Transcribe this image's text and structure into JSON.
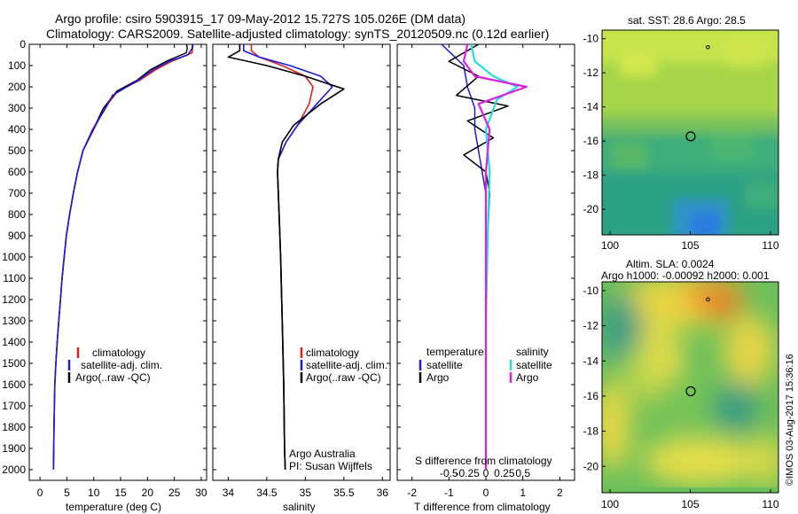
{
  "header": {
    "line1": "Argo profile: csiro 5903915_17 09-May-2012 15.727S 105.026E (DM data)",
    "line2": "Climatology: CARS2009. Satellite-adjusted climatology: synTS_20120509.nc (0.12d earlier)"
  },
  "credits": {
    "argo": "Argo Australia",
    "pi": "PI: Susan Wijffels",
    "imos": "©IMOS 03-Aug-2017 15:36:16"
  },
  "colors": {
    "climatology": "#e02020",
    "satellite": "#1c1cdc",
    "argo": "#000000",
    "sal_satellite": "#22dede",
    "sal_argo": "#e020e0"
  },
  "chart_data": [
    {
      "type": "line",
      "id": "temperature",
      "xlabel": "temperature (deg C)",
      "xlim": [
        -2,
        31
      ],
      "ylim": [
        0,
        2050
      ],
      "yticks": [
        0,
        100,
        200,
        300,
        400,
        500,
        600,
        700,
        800,
        900,
        1000,
        1100,
        1200,
        1300,
        1400,
        1500,
        1600,
        1700,
        1800,
        1900,
        2000
      ],
      "xticks": [
        0,
        5,
        10,
        15,
        20,
        25,
        30
      ],
      "legend": [
        "climatology",
        "satellite-adj. clim.",
        "Argo(..raw -QC)"
      ],
      "series": [
        {
          "name": "climatology",
          "x": [
            28.5,
            28.4,
            28.3,
            24.5,
            21.5,
            18.5,
            14.5,
            12.0,
            10.0,
            8.0,
            7.0,
            6.2,
            5.5,
            4.9,
            4.5,
            4.1,
            3.8,
            3.5,
            3.2,
            2.95,
            2.75,
            2.6,
            2.5
          ],
          "y": [
            0,
            20,
            40,
            80,
            120,
            170,
            220,
            300,
            400,
            500,
            600,
            700,
            800,
            900,
            1000,
            1100,
            1200,
            1300,
            1400,
            1500,
            1600,
            1800,
            2000
          ]
        },
        {
          "name": "satellite-adj. clim.",
          "x": [
            27.3,
            27.4,
            27.2,
            23.5,
            20.5,
            18.0,
            14.3,
            11.8,
            9.9,
            8.0,
            7.0,
            6.2,
            5.5,
            4.9,
            4.5,
            4.1,
            3.8,
            3.5,
            3.2,
            2.95,
            2.75,
            2.6,
            2.5
          ],
          "y": [
            0,
            20,
            40,
            80,
            120,
            170,
            220,
            300,
            400,
            500,
            600,
            700,
            800,
            900,
            1000,
            1100,
            1200,
            1300,
            1400,
            1500,
            1600,
            1800,
            2000
          ]
        },
        {
          "name": "Argo(..raw -QC)",
          "x": [
            28.4,
            28.3,
            27.5,
            24.0,
            21.0,
            18.2,
            13.5,
            12.2,
            9.8,
            8.0,
            7.0,
            6.2,
            5.5,
            4.9,
            4.5,
            4.1,
            3.8,
            3.5,
            3.2,
            2.95,
            2.75,
            2.6,
            2.5
          ],
          "y": [
            0,
            20,
            50,
            80,
            120,
            170,
            240,
            300,
            400,
            500,
            600,
            700,
            800,
            900,
            1000,
            1100,
            1200,
            1300,
            1400,
            1500,
            1600,
            1800,
            2000
          ]
        }
      ]
    },
    {
      "type": "line",
      "id": "salinity",
      "xlabel": "salinity",
      "xlim": [
        33.8,
        36.1
      ],
      "ylim": [
        0,
        2050
      ],
      "xticks": [
        34,
        34.5,
        35,
        35.5,
        36
      ],
      "legend": [
        "climatology",
        "satellite-adj. clim.",
        "Argo(..raw -QC)"
      ],
      "series": [
        {
          "name": "climatology",
          "x": [
            34.3,
            34.3,
            34.4,
            34.7,
            35.0,
            35.1,
            35.05,
            34.9,
            34.75,
            34.65,
            34.64,
            34.66,
            34.68,
            34.7,
            34.72,
            34.73,
            34.74
          ],
          "y": [
            0,
            30,
            60,
            100,
            150,
            200,
            280,
            380,
            460,
            540,
            600,
            800,
            1000,
            1300,
            1600,
            1900,
            2000
          ]
        },
        {
          "name": "satellite-adj. clim.",
          "x": [
            34.2,
            34.2,
            34.4,
            34.8,
            35.2,
            35.35,
            35.15,
            34.9,
            34.75,
            34.65,
            34.64,
            34.66,
            34.68,
            34.7,
            34.72,
            34.73,
            34.74
          ],
          "y": [
            0,
            30,
            60,
            100,
            150,
            200,
            280,
            380,
            460,
            540,
            600,
            800,
            1000,
            1300,
            1600,
            1900,
            2000
          ]
        },
        {
          "name": "Argo(..raw -QC)",
          "x": [
            34.15,
            34.15,
            34.0,
            34.5,
            35.0,
            35.5,
            35.2,
            34.85,
            34.7,
            34.65,
            34.64,
            34.66,
            34.68,
            34.7,
            34.72,
            34.73,
            34.74
          ],
          "y": [
            0,
            30,
            60,
            100,
            150,
            210,
            280,
            380,
            460,
            540,
            600,
            800,
            1000,
            1300,
            1600,
            1900,
            2000
          ]
        }
      ]
    },
    {
      "type": "line",
      "id": "difference",
      "xlabel": "T difference from climatology",
      "top_label": "S difference from climatology",
      "xlim": [
        -2.4,
        2.4
      ],
      "ylim": [
        0,
        2050
      ],
      "xticks": [
        -2,
        -1,
        0,
        1,
        2
      ],
      "s_ticks": [
        "-0.5",
        "-0.25",
        "0",
        "0.25",
        "0.5"
      ],
      "legend_left_title": "temperature",
      "legend_right_title": "salinity",
      "legend_left": [
        "satellite",
        "Argo"
      ],
      "legend_right": [
        "satellite",
        "Argo"
      ],
      "series": [
        {
          "name": "T satellite",
          "x": [
            -1.2,
            -0.6,
            -0.5,
            -0.3,
            -0.3,
            -0.2,
            -0.1,
            0.0,
            0.0,
            0.0,
            0.0
          ],
          "y": [
            0,
            100,
            200,
            300,
            400,
            500,
            600,
            700,
            800,
            1200,
            2000
          ]
        },
        {
          "name": "T Argo",
          "x": [
            -0.2,
            -1.0,
            -0.2,
            -0.8,
            0.6,
            -0.5,
            0.2,
            -0.6,
            0.0,
            0.1,
            0.05,
            0.0,
            0.0
          ],
          "y": [
            0,
            80,
            150,
            240,
            290,
            360,
            440,
            520,
            600,
            700,
            900,
            1300,
            2000
          ]
        },
        {
          "name": "S satellite",
          "x": [
            -0.4,
            -0.3,
            0.2,
            0.85,
            0.3,
            0.0,
            0.1,
            0.05,
            0.0,
            0.0
          ],
          "y": [
            0,
            80,
            150,
            200,
            260,
            400,
            600,
            900,
            1300,
            2000
          ]
        },
        {
          "name": "S Argo",
          "x": [
            -0.5,
            -0.6,
            -0.3,
            1.1,
            -0.2,
            0.1,
            0.0,
            0.0,
            0.0
          ],
          "y": [
            0,
            80,
            150,
            200,
            280,
            400,
            600,
            1000,
            2000
          ]
        }
      ]
    },
    {
      "type": "heatmap",
      "id": "sst_map",
      "title": "sat. SST: 28.6  Argo: 28.5",
      "xlim": [
        99.5,
        110.5
      ],
      "ylim": [
        -21.5,
        -9.5
      ],
      "xticks": [
        100,
        105,
        110
      ],
      "yticks": [
        -10,
        -12,
        -14,
        -16,
        -18,
        -20
      ],
      "argo_position": [
        105.026,
        -15.727
      ]
    },
    {
      "type": "heatmap",
      "id": "sla_map",
      "title": "Altim. SLA: 0.0024",
      "subtitle": "Argo h1000: -0.00092  h2000: 0.001",
      "xlim": [
        99.5,
        110.5
      ],
      "ylim": [
        -21.5,
        -9.5
      ],
      "xticks": [
        100,
        105,
        110
      ],
      "yticks": [
        -10,
        -12,
        -14,
        -16,
        -18,
        -20
      ],
      "argo_position": [
        105.026,
        -15.727
      ]
    }
  ]
}
